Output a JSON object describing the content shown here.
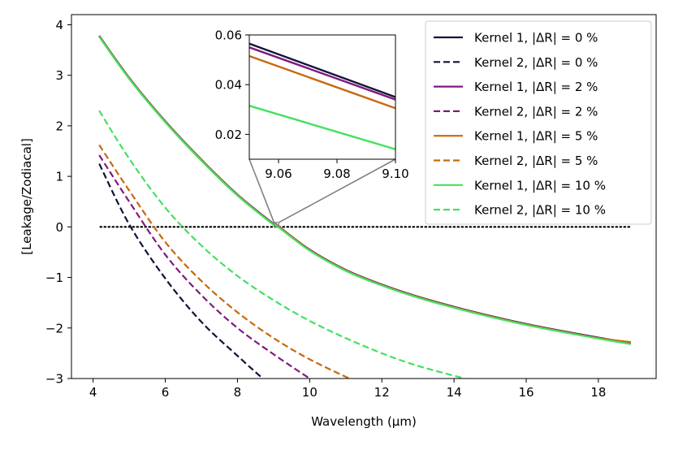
{
  "chart_data": {
    "type": "line",
    "xlabel": "Wavelength (μm)",
    "ylabel": "[Leakage/Zodiacal]",
    "xlim": [
      3.4,
      19.6
    ],
    "ylim": [
      -3,
      4.2
    ],
    "xticks": [
      4,
      6,
      8,
      10,
      12,
      14,
      16,
      18
    ],
    "yticks": [
      -3,
      -2,
      -1,
      0,
      1,
      2,
      3,
      4
    ],
    "grid": false,
    "legend_position": "top-right",
    "reference_line": {
      "y": 0,
      "x_range": [
        4.2,
        18.9
      ],
      "style": "dotted",
      "color": "#000000"
    },
    "series": [
      {
        "name": "Kernel 1, |ΔR| = 0 %",
        "color": "#101436",
        "dash": "solid",
        "x": [
          4.17,
          5,
          6,
          7,
          8,
          9,
          9.06,
          9.1,
          10,
          11,
          12,
          13,
          14,
          15,
          16,
          17,
          18,
          18.9
        ],
        "y": [
          3.78,
          2.95,
          2.09,
          1.33,
          0.64,
          0.06,
          0.055,
          0.035,
          -0.45,
          -0.85,
          -1.14,
          -1.38,
          -1.58,
          -1.76,
          -1.92,
          -2.06,
          -2.19,
          -2.3
        ]
      },
      {
        "name": "Kernel 2, |ΔR| = 0 %",
        "color": "#101436",
        "dash": "dashed",
        "x": [
          4.17,
          5,
          6,
          7,
          8,
          8.7
        ],
        "y": [
          1.25,
          0.05,
          -1.02,
          -1.88,
          -2.55,
          -3.0
        ]
      },
      {
        "name": "Kernel 1, |ΔR| = 2 %",
        "color": "#7f1a7f",
        "dash": "solid",
        "x": [
          4.17,
          5,
          6,
          7,
          8,
          9,
          9.06,
          9.1,
          10,
          11,
          12,
          13,
          14,
          15,
          16,
          17,
          18,
          18.9
        ],
        "y": [
          3.775,
          2.945,
          2.085,
          1.325,
          0.635,
          0.055,
          0.054,
          0.034,
          -0.455,
          -0.855,
          -1.145,
          -1.385,
          -1.585,
          -1.765,
          -1.925,
          -2.065,
          -2.195,
          -2.305
        ]
      },
      {
        "name": "Kernel 2, |ΔR| = 2 %",
        "color": "#7f1a7f",
        "dash": "dashed",
        "x": [
          4.17,
          5,
          6,
          7,
          8,
          9,
          10
        ],
        "y": [
          1.42,
          0.5,
          -0.55,
          -1.35,
          -2.0,
          -2.52,
          -3.0
        ]
      },
      {
        "name": "Kernel 1, |ΔR| = 5 %",
        "color": "#c8680f",
        "dash": "solid",
        "x": [
          4.17,
          5,
          6,
          7,
          8,
          9,
          9.06,
          9.1,
          10,
          11,
          12,
          13,
          14,
          15,
          16,
          17,
          18,
          18.9
        ],
        "y": [
          3.77,
          2.94,
          2.08,
          1.32,
          0.63,
          0.05,
          0.051,
          0.031,
          -0.46,
          -0.86,
          -1.15,
          -1.39,
          -1.59,
          -1.77,
          -1.93,
          -2.07,
          -2.2,
          -2.28
        ]
      },
      {
        "name": "Kernel 2, |ΔR| = 5 %",
        "color": "#c8680f",
        "dash": "dashed",
        "x": [
          4.17,
          5,
          6,
          7,
          8,
          9,
          10,
          11.1
        ],
        "y": [
          1.62,
          0.72,
          -0.3,
          -1.07,
          -1.69,
          -2.2,
          -2.62,
          -3.0
        ]
      },
      {
        "name": "Kernel 1, |ΔR| = 10 %",
        "color": "#44e060",
        "dash": "solid",
        "x": [
          4.17,
          5,
          6,
          7,
          8,
          9,
          9.06,
          9.1,
          10,
          11,
          12,
          13,
          14,
          15,
          16,
          17,
          18,
          18.9
        ],
        "y": [
          3.76,
          2.93,
          2.07,
          1.31,
          0.62,
          0.04,
          0.031,
          0.014,
          -0.47,
          -0.87,
          -1.16,
          -1.4,
          -1.6,
          -1.78,
          -1.94,
          -2.08,
          -2.21,
          -2.32
        ]
      },
      {
        "name": "Kernel 2, |ΔR| = 10 %",
        "color": "#44e060",
        "dash": "dashed",
        "x": [
          4.17,
          5,
          6,
          7,
          8,
          9,
          10,
          11,
          12,
          13,
          14.3
        ],
        "y": [
          2.3,
          1.35,
          0.38,
          -0.37,
          -0.97,
          -1.45,
          -1.86,
          -2.2,
          -2.5,
          -2.75,
          -3.0
        ]
      }
    ],
    "inset": {
      "xlim": [
        9.05,
        9.1
      ],
      "ylim": [
        0.01,
        0.06
      ],
      "xticks": [
        9.06,
        9.08,
        9.1
      ],
      "xtick_labels": [
        "9.06",
        "9.08",
        "9.10"
      ],
      "yticks": [
        0.02,
        0.04,
        0.06
      ],
      "ytick_labels": [
        "0.02",
        "0.04",
        "0.06"
      ],
      "lines": [
        {
          "color": "#101436",
          "y": [
            0.0565,
            0.035
          ]
        },
        {
          "color": "#7f1a7f",
          "y": [
            0.055,
            0.034
          ]
        },
        {
          "color": "#c8680f",
          "y": [
            0.0515,
            0.0305
          ]
        },
        {
          "color": "#44e060",
          "y": [
            0.0315,
            0.014
          ]
        }
      ]
    }
  }
}
